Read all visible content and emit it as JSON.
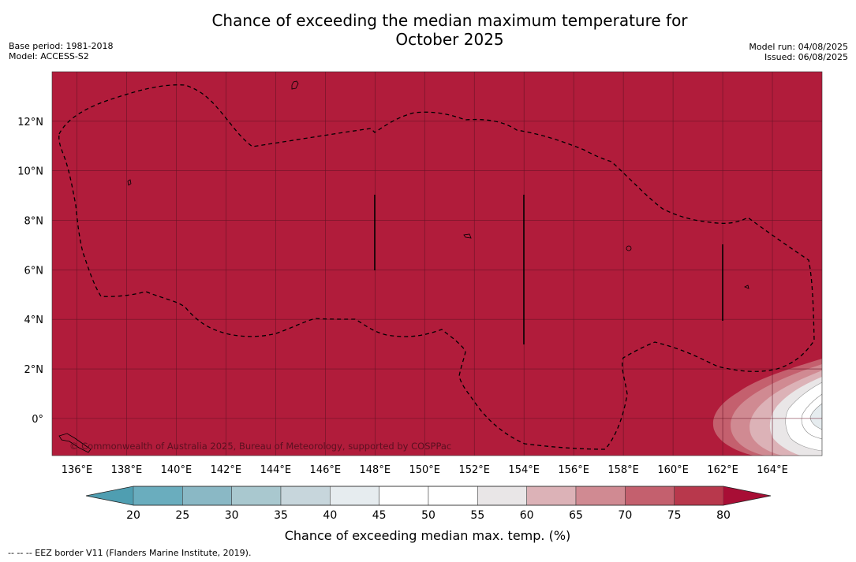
{
  "title": "Chance of exceeding the median maximum temperature for\nOctober 2025",
  "title_lines": [
    "Chance of exceeding the median maximum temperature for",
    "October 2025"
  ],
  "meta_left": {
    "base_period": "Base period: 1981-2018",
    "model": "Model: ACCESS-S2"
  },
  "meta_right": {
    "model_run": "Model run: 04/08/2025",
    "issued": "Issued: 06/08/2025"
  },
  "map": {
    "lon_range": [
      135.0,
      166.0
    ],
    "lat_range": [
      -1.5,
      14.0
    ],
    "x_ticks": [
      "136°E",
      "138°E",
      "140°E",
      "142°E",
      "144°E",
      "146°E",
      "148°E",
      "150°E",
      "152°E",
      "154°E",
      "156°E",
      "158°E",
      "160°E",
      "162°E",
      "164°E"
    ],
    "y_ticks": [
      "12°N",
      "10°N",
      "8°N",
      "6°N",
      "4°N",
      "2°N",
      "0°"
    ],
    "background_color": "#b11c3b",
    "credit": "© Commonwealth of Australia 2025, Bureau of Meteorology, supported by COSPPac"
  },
  "colorbar": {
    "ticks": [
      "20",
      "25",
      "30",
      "35",
      "40",
      "45",
      "50",
      "55",
      "60",
      "65",
      "70",
      "75",
      "80"
    ],
    "colors": [
      "#6aadbe",
      "#8ab8c5",
      "#a9c8cf",
      "#c7d6dc",
      "#e6ecef",
      "#ffffff",
      "#ffffff",
      "#e9e6e7",
      "#dcb2b7",
      "#d08a92",
      "#c4606e",
      "#b8384c"
    ],
    "under_color": "#4f9eb1",
    "over_color": "#a80e35",
    "label": "Chance of exceeding median max. temp. (%)"
  },
  "footnote": "--  --  -- EEZ border V11 (Flanders Marine Institute, 2019)."
}
